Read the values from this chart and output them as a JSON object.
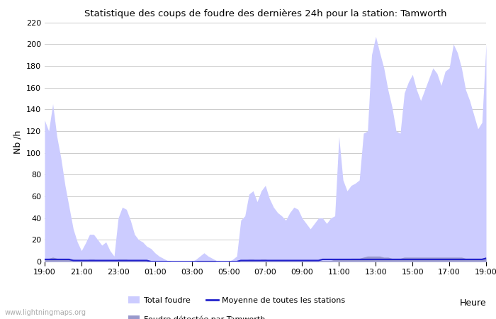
{
  "title": "Statistique des coups de foudre des dernières 24h pour la station: Tamworth",
  "xlabel": "Heure",
  "ylabel": "Nb /h",
  "ylim": [
    0,
    220
  ],
  "yticks": [
    0,
    20,
    40,
    60,
    80,
    100,
    120,
    140,
    160,
    180,
    200,
    220
  ],
  "x_labels": [
    "19:00",
    "21:00",
    "23:00",
    "01:00",
    "03:00",
    "05:00",
    "07:00",
    "09:00",
    "11:00",
    "13:00",
    "15:00",
    "17:00",
    "19:00"
  ],
  "background_color": "#ffffff",
  "plot_bg_color": "#ffffff",
  "grid_color": "#cccccc",
  "fill_light_color": "#ccccff",
  "fill_dark_color": "#9999cc",
  "line_color": "#2222cc",
  "watermark": "www.lightningmaps.org",
  "total_foudre": [
    130,
    120,
    145,
    115,
    95,
    70,
    50,
    30,
    18,
    10,
    17,
    25,
    25,
    20,
    15,
    18,
    10,
    5,
    40,
    50,
    48,
    38,
    25,
    20,
    18,
    14,
    12,
    8,
    5,
    3,
    1,
    0,
    0,
    0,
    0,
    0,
    0,
    2,
    5,
    8,
    5,
    3,
    1,
    0,
    0,
    0,
    2,
    5,
    38,
    42,
    62,
    65,
    55,
    65,
    70,
    58,
    50,
    45,
    42,
    38,
    45,
    50,
    48,
    40,
    35,
    30,
    35,
    40,
    40,
    35,
    40,
    42,
    115,
    75,
    65,
    70,
    72,
    75,
    118,
    120,
    190,
    207,
    192,
    178,
    158,
    142,
    120,
    118,
    155,
    165,
    172,
    158,
    148,
    158,
    168,
    178,
    173,
    162,
    175,
    178,
    200,
    192,
    178,
    158,
    148,
    135,
    122,
    128,
    200
  ],
  "foudre_tamworth": [
    3,
    3,
    4,
    3,
    2,
    2,
    2,
    2,
    1,
    1,
    1,
    2,
    2,
    1,
    1,
    1,
    1,
    1,
    2,
    2,
    2,
    1,
    1,
    1,
    1,
    1,
    0,
    0,
    0,
    0,
    0,
    0,
    0,
    0,
    0,
    0,
    0,
    0,
    1,
    1,
    1,
    1,
    0,
    0,
    0,
    0,
    0,
    0,
    1,
    1,
    2,
    2,
    1,
    2,
    2,
    1,
    1,
    1,
    1,
    1,
    1,
    1,
    1,
    1,
    1,
    1,
    1,
    1,
    1,
    1,
    1,
    2,
    3,
    2,
    2,
    3,
    3,
    3,
    4,
    5,
    5,
    5,
    5,
    4,
    4,
    3,
    3,
    3,
    4,
    4,
    4,
    4,
    4,
    4,
    4,
    4,
    4,
    4,
    4,
    4,
    4,
    4,
    4,
    3,
    3,
    3,
    3,
    3,
    4
  ],
  "moyenne_stations": [
    2,
    2,
    2,
    2,
    2,
    2,
    2,
    1,
    1,
    1,
    1,
    1,
    1,
    1,
    1,
    1,
    1,
    1,
    1,
    1,
    1,
    1,
    1,
    1,
    1,
    1,
    0,
    0,
    0,
    0,
    0,
    0,
    0,
    0,
    0,
    0,
    0,
    0,
    0,
    0,
    0,
    0,
    0,
    0,
    0,
    0,
    0,
    0,
    1,
    1,
    1,
    1,
    1,
    1,
    1,
    1,
    1,
    1,
    1,
    1,
    1,
    1,
    1,
    1,
    1,
    1,
    1,
    1,
    2,
    2,
    2,
    2,
    2,
    2,
    2,
    2,
    2,
    2,
    2,
    2,
    2,
    2,
    2,
    2,
    2,
    2,
    2,
    2,
    2,
    2,
    2,
    2,
    2,
    2,
    2,
    2,
    2,
    2,
    2,
    2,
    2,
    2,
    2,
    2,
    2,
    2,
    2,
    2,
    3
  ]
}
